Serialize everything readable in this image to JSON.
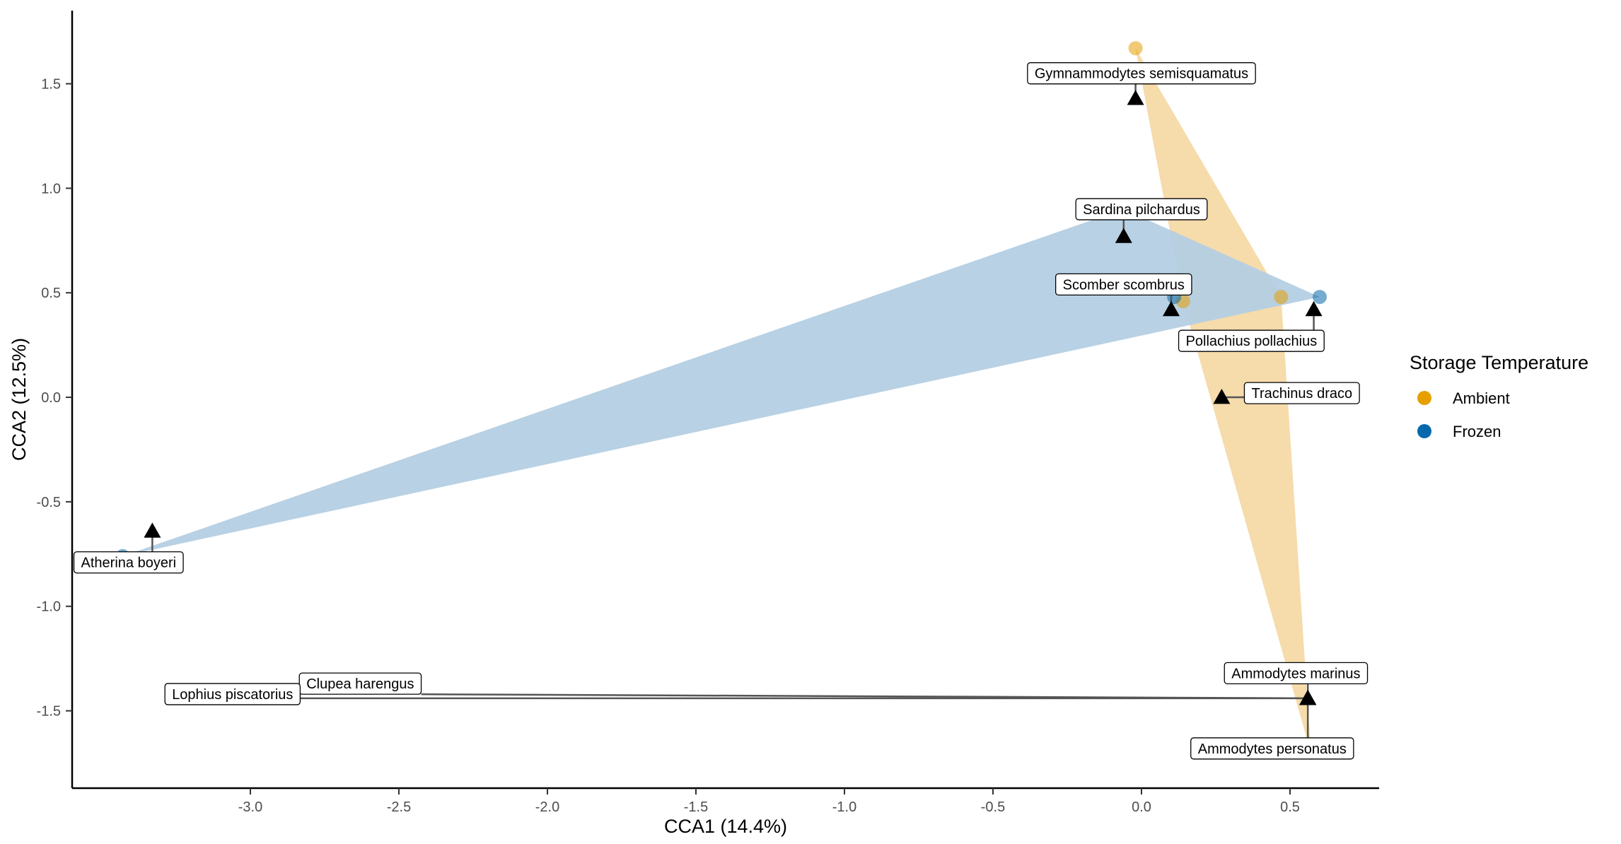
{
  "chart_data": {
    "type": "scatter",
    "xlabel": "CCA1 (14.4%)",
    "ylabel": "CCA2 (12.5%)",
    "xlim": [
      -3.6,
      0.8
    ],
    "ylim": [
      -1.87,
      1.85
    ],
    "xticks": [
      -3.0,
      -2.5,
      -2.0,
      -1.5,
      -1.0,
      -0.5,
      0.0,
      0.5
    ],
    "xtick_labels": [
      "-3.0",
      "-2.5",
      "-2.0",
      "-1.5",
      "-1.0",
      "-0.5",
      "0.0",
      "0.5"
    ],
    "yticks": [
      -1.5,
      -1.0,
      -0.5,
      0.0,
      0.5,
      1.0,
      1.5
    ],
    "ytick_labels": [
      "-1.5",
      "-1.0",
      "-0.5",
      "0.0",
      "0.5",
      "1.0",
      "1.5"
    ],
    "grid": false,
    "legend": {
      "title": "Storage Temperature",
      "position": "right",
      "entries": [
        {
          "label": "Ambient",
          "color": "#E69F00"
        },
        {
          "label": "Frozen",
          "color": "#0868AC"
        }
      ]
    },
    "series": [
      {
        "name": "Ambient",
        "color": "#E69F00",
        "hull_color": "#F5D9A6",
        "points": [
          {
            "x": -0.02,
            "y": 1.67
          },
          {
            "x": 0.14,
            "y": 0.46
          },
          {
            "x": 0.47,
            "y": 0.48
          },
          {
            "x": 0.57,
            "y": -1.7
          }
        ]
      },
      {
        "name": "Frozen",
        "color": "#0868AC",
        "hull_color": "#B4CFE3",
        "points": [
          {
            "x": -3.43,
            "y": -0.76
          },
          {
            "x": -0.06,
            "y": 0.9
          },
          {
            "x": 0.11,
            "y": 0.48
          },
          {
            "x": 0.6,
            "y": 0.48
          }
        ]
      }
    ],
    "species": [
      {
        "name": "Gymnammodytes semisquamatus",
        "x": -0.02,
        "y": 1.43,
        "lx": 0.0,
        "ly": 1.55
      },
      {
        "name": "Sardina pilchardus",
        "x": -0.06,
        "y": 0.77,
        "lx": 0.0,
        "ly": 0.9
      },
      {
        "name": "Scomber scombrus",
        "x": 0.1,
        "y": 0.42,
        "lx": -0.06,
        "ly": 0.54
      },
      {
        "name": "Pollachius pollachius",
        "x": 0.58,
        "y": 0.42,
        "lx": 0.37,
        "ly": 0.27
      },
      {
        "name": "Trachinus draco",
        "x": 0.27,
        "y": 0.0,
        "lx": 0.54,
        "ly": 0.02
      },
      {
        "name": "Atherina boyeri",
        "x": -3.33,
        "y": -0.64,
        "lx": -3.41,
        "ly": -0.79
      },
      {
        "name": "Ammodytes marinus",
        "x": 0.56,
        "y": -1.44,
        "lx": 0.52,
        "ly": -1.32
      },
      {
        "name": "Ammodytes personatus",
        "x": 0.56,
        "y": -1.44,
        "lx": 0.44,
        "ly": -1.68
      },
      {
        "name": "Clupea harengus",
        "x": 0.56,
        "y": -1.44,
        "lx": -2.63,
        "ly": -1.37
      },
      {
        "name": "Lophius piscatorius",
        "x": 0.56,
        "y": -1.44,
        "lx": -3.06,
        "ly": -1.42
      }
    ]
  }
}
